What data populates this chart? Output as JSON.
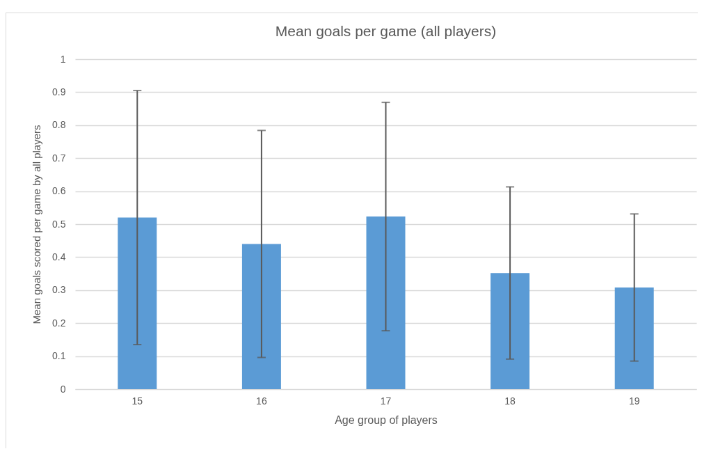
{
  "chart_data": {
    "type": "bar",
    "title": "Mean goals per game (all players)",
    "xlabel": "Age group of players",
    "ylabel": "Mean goals scored per game by all players",
    "categories": [
      "15",
      "16",
      "17",
      "18",
      "19"
    ],
    "values": [
      0.52,
      0.44,
      0.523,
      0.352,
      0.308
    ],
    "errors": [
      0.385,
      0.344,
      0.346,
      0.261,
      0.223
    ],
    "color": "#5b9bd5",
    "ylim": [
      0,
      1
    ],
    "yticks": [
      0,
      0.1,
      0.2,
      0.3,
      0.4,
      0.5,
      0.6,
      0.7,
      0.8,
      0.9,
      1
    ],
    "grid": "y"
  }
}
